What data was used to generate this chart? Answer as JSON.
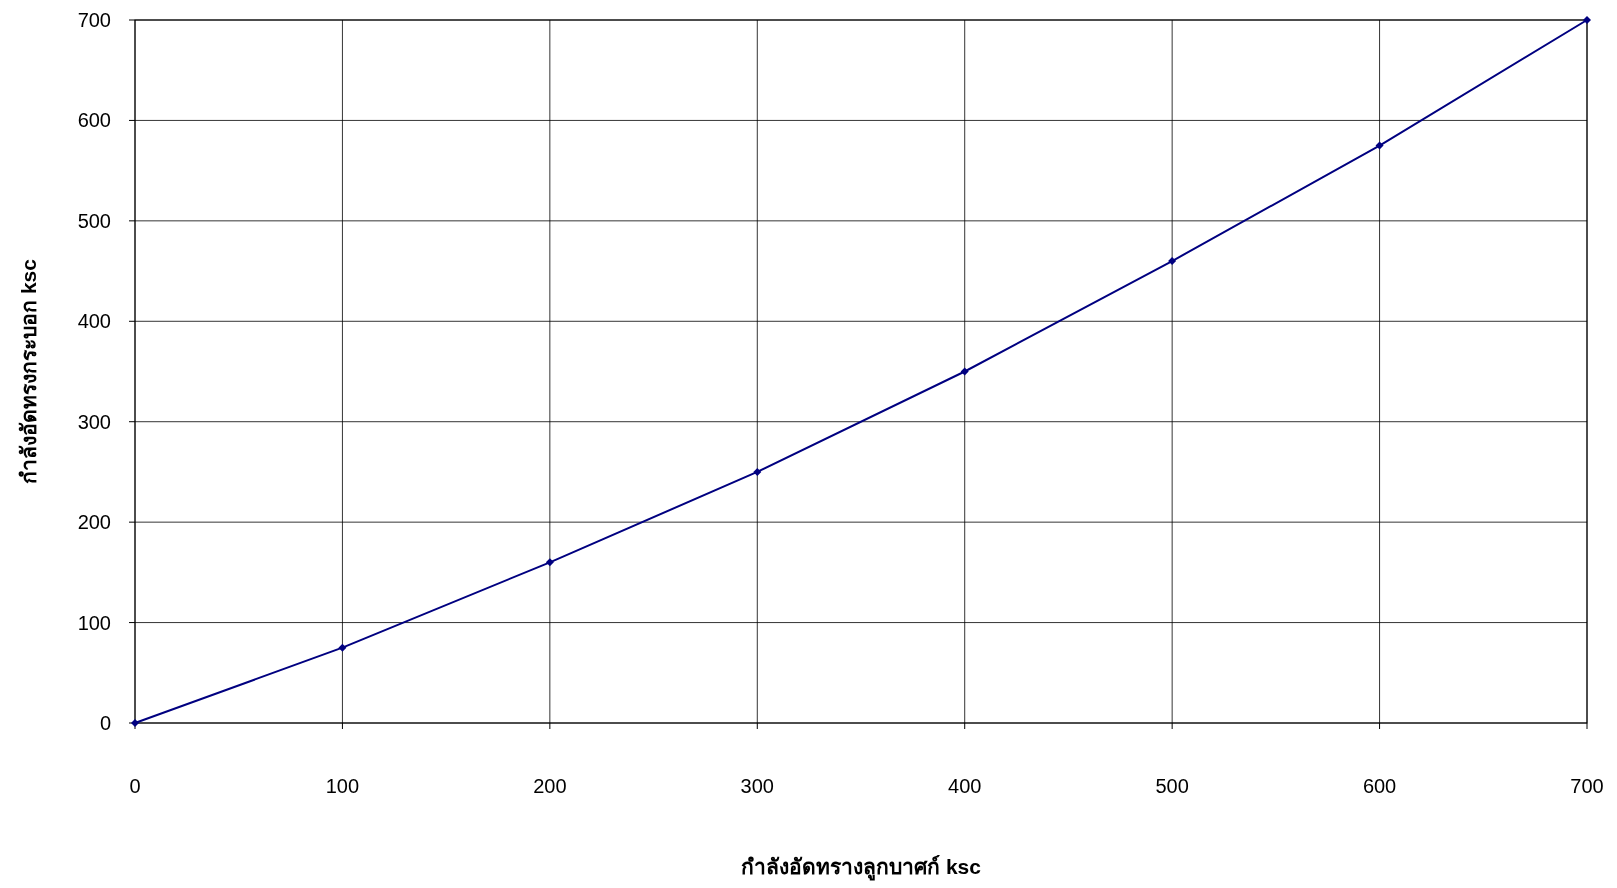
{
  "chart_data": {
    "type": "line",
    "xlabel": "กำลังอัดทรางลูกบาศก์ ksc",
    "ylabel": "กำลังอัดทรงกระบอก ksc",
    "x": [
      0,
      100,
      200,
      300,
      400,
      500,
      600,
      700
    ],
    "series": [
      {
        "color": "#000080",
        "values": [
          0,
          75,
          160,
          250,
          350,
          460,
          575,
          700
        ]
      }
    ],
    "xlim": [
      0,
      700
    ],
    "xticks": [
      0,
      100,
      200,
      300,
      400,
      500,
      600,
      700
    ],
    "ylim": [
      0,
      700
    ],
    "yticks": [
      0,
      100,
      200,
      300,
      400,
      500,
      600,
      700
    ],
    "grid": true,
    "marker": "diamond",
    "line_style": "solid"
  }
}
